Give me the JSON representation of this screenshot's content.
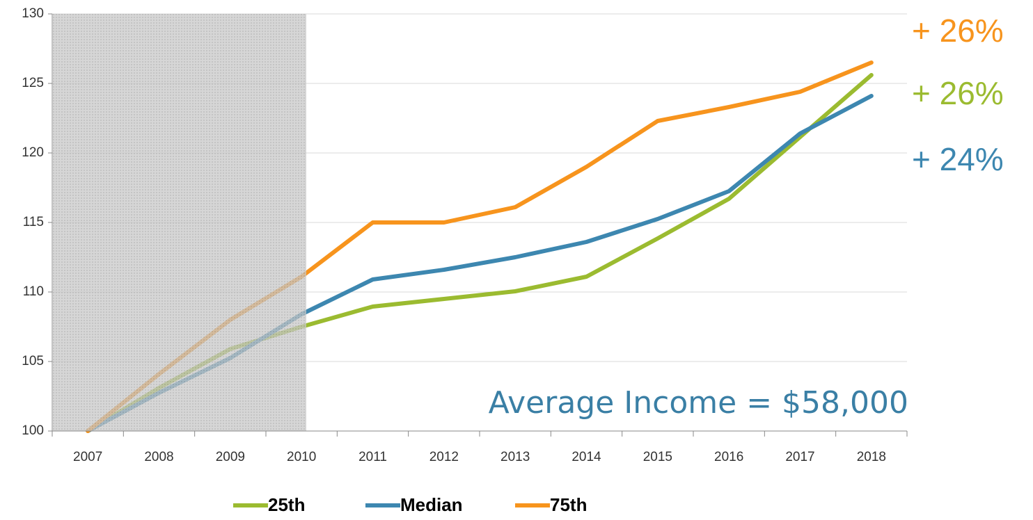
{
  "chart_data": {
    "type": "line",
    "categories": [
      "2007",
      "2008",
      "2009",
      "2010",
      "2011",
      "2012",
      "2013",
      "2014",
      "2015",
      "2016",
      "2017",
      "2018"
    ],
    "series": [
      {
        "name": "25th",
        "color": "#9bbb30",
        "values": [
          100,
          103.1,
          105.9,
          107.5,
          108.95,
          109.5,
          110.05,
          111.1,
          113.85,
          116.7,
          121.15,
          125.6
        ]
      },
      {
        "name": "Median",
        "color": "#3d87b0",
        "values": [
          100,
          102.75,
          105.25,
          108.4,
          110.9,
          111.6,
          112.5,
          113.6,
          115.25,
          117.25,
          121.4,
          124.1
        ]
      },
      {
        "name": "75th",
        "color": "#f7941d",
        "values": [
          100,
          104.1,
          108,
          111.1,
          115,
          115,
          116.1,
          119,
          122.3,
          123.3,
          124.4,
          126.5
        ]
      }
    ],
    "ylim": [
      100,
      130
    ],
    "yticks": [
      100,
      105,
      110,
      115,
      120,
      125,
      130
    ],
    "grid": true,
    "annotations": [
      {
        "text": "+ 26%",
        "color": "#f7941d"
      },
      {
        "text": "+ 26%",
        "color": "#9bbb30"
      },
      {
        "text": "+ 24%",
        "color": "#3d87b0"
      },
      {
        "text": "Average Income = $58,000",
        "color": "#3a7fa5"
      }
    ],
    "legend": "bottom"
  }
}
